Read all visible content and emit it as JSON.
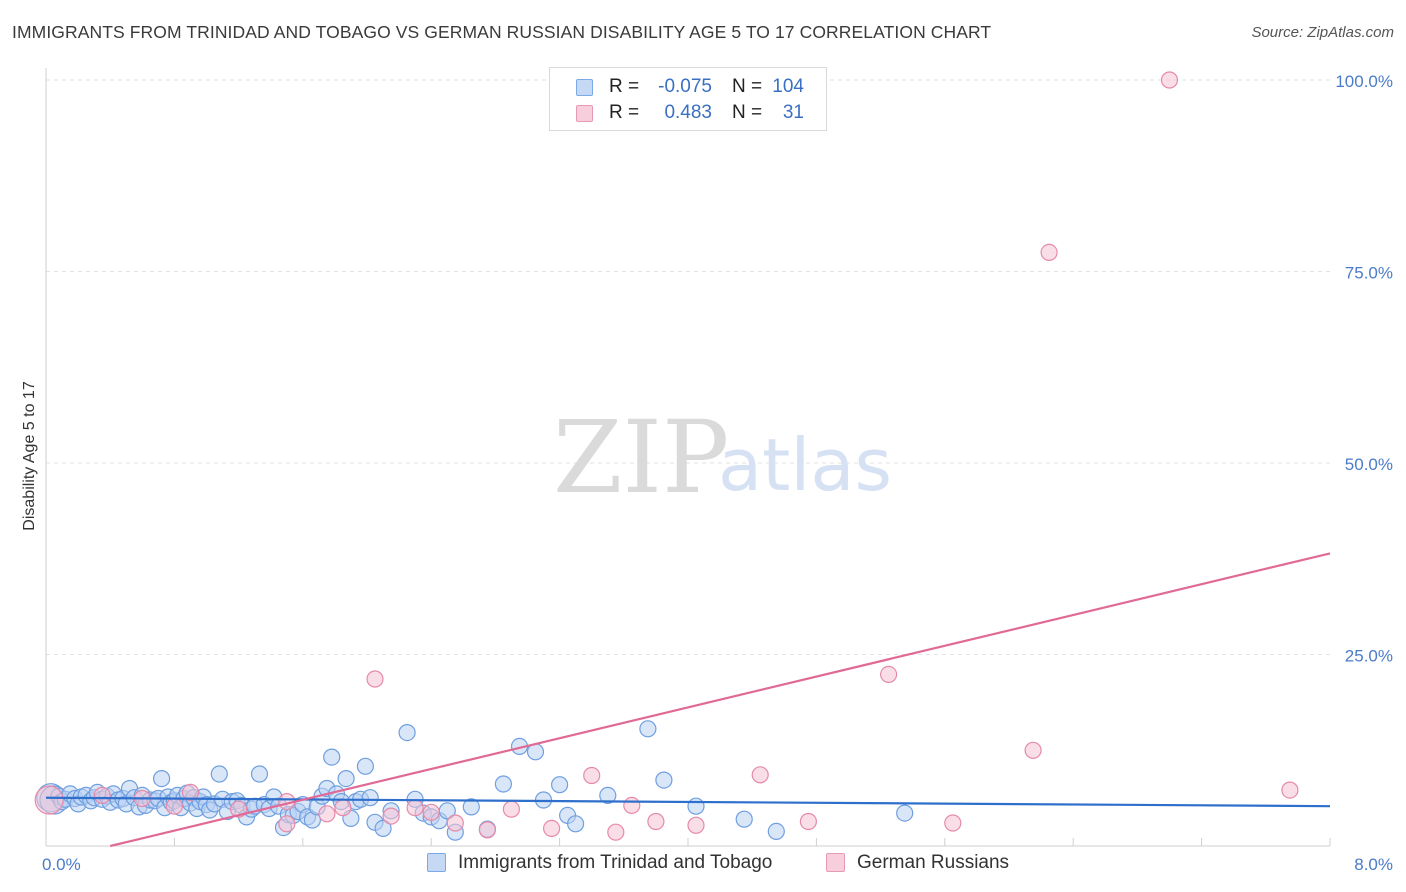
{
  "title": "IMMIGRANTS FROM TRINIDAD AND TOBAGO VS GERMAN RUSSIAN DISABILITY AGE 5 TO 17 CORRELATION CHART",
  "source": "Source: ZipAtlas.com",
  "watermark": {
    "zip": "ZIP",
    "atlas": "atlas"
  },
  "legend": {
    "rows": [
      {
        "r_label": "R =",
        "r_value": "-0.075",
        "n_label": "N =",
        "n_value": "104",
        "color": "#7aa8e8",
        "fill": "#c5d9f5"
      },
      {
        "r_label": "R =",
        "r_value": "0.483",
        "n_label": "N =",
        "n_value": "31",
        "color": "#e89ab4",
        "fill": "#f7cfdc"
      }
    ]
  },
  "bottom_legend": [
    {
      "label": "Immigrants from Trinidad and Tobago",
      "color": "#7aa8e8",
      "fill": "#c5d9f5"
    },
    {
      "label": "German Russians",
      "color": "#e89ab4",
      "fill": "#f7cfdc"
    }
  ],
  "chart_data": {
    "type": "scatter",
    "title": "IMMIGRANTS FROM TRINIDAD AND TOBAGO VS GERMAN RUSSIAN DISABILITY AGE 5 TO 17 CORRELATION CHART",
    "xlabel": "",
    "ylabel": "Disability Age 5 to 17",
    "xlim": [
      0,
      8
    ],
    "ylim": [
      0,
      100
    ],
    "x_tick_labels": [
      "0.0%",
      "8.0%"
    ],
    "y_ticks": [
      25,
      50,
      75,
      100
    ],
    "y_tick_labels": [
      "25.0%",
      "50.0%",
      "75.0%",
      "100.0%"
    ],
    "grid": true,
    "series": [
      {
        "name": "Immigrants from Trinidad and Tobago",
        "color": "#6f9fe0",
        "fill": "#b9d2f3",
        "trend": {
          "x": [
            0,
            8
          ],
          "y": [
            6.3,
            5.2
          ],
          "color": "#2f6fcc"
        },
        "points": [
          [
            0.03,
            6.3
          ],
          [
            0.05,
            6.0
          ],
          [
            0.08,
            6.5
          ],
          [
            0.1,
            5.8
          ],
          [
            0.12,
            6.1
          ],
          [
            0.15,
            6.8
          ],
          [
            0.18,
            6.2
          ],
          [
            0.2,
            5.5
          ],
          [
            0.22,
            6.4
          ],
          [
            0.25,
            6.6
          ],
          [
            0.28,
            5.9
          ],
          [
            0.3,
            6.3
          ],
          [
            0.32,
            7.0
          ],
          [
            0.35,
            6.1
          ],
          [
            0.38,
            6.5
          ],
          [
            0.4,
            5.7
          ],
          [
            0.42,
            6.8
          ],
          [
            0.45,
            6.0
          ],
          [
            0.48,
            6.2
          ],
          [
            0.5,
            5.5
          ],
          [
            0.52,
            7.5
          ],
          [
            0.55,
            6.3
          ],
          [
            0.58,
            5.1
          ],
          [
            0.6,
            6.6
          ],
          [
            0.62,
            5.3
          ],
          [
            0.65,
            6.0
          ],
          [
            0.68,
            5.9
          ],
          [
            0.7,
            6.2
          ],
          [
            0.72,
            8.8
          ],
          [
            0.74,
            5.0
          ],
          [
            0.76,
            6.4
          ],
          [
            0.78,
            5.7
          ],
          [
            0.8,
            5.9
          ],
          [
            0.82,
            6.6
          ],
          [
            0.84,
            5.0
          ],
          [
            0.86,
            6.2
          ],
          [
            0.88,
            6.9
          ],
          [
            0.9,
            5.6
          ],
          [
            0.92,
            6.3
          ],
          [
            0.94,
            4.9
          ],
          [
            0.96,
            5.8
          ],
          [
            0.98,
            6.4
          ],
          [
            1.0,
            5.4
          ],
          [
            1.02,
            4.7
          ],
          [
            1.05,
            5.5
          ],
          [
            1.08,
            9.4
          ],
          [
            1.1,
            6.1
          ],
          [
            1.13,
            4.5
          ],
          [
            1.16,
            5.8
          ],
          [
            1.19,
            5.9
          ],
          [
            1.22,
            5.3
          ],
          [
            1.25,
            3.8
          ],
          [
            1.28,
            4.8
          ],
          [
            1.3,
            5.2
          ],
          [
            1.33,
            9.4
          ],
          [
            1.36,
            5.4
          ],
          [
            1.39,
            4.9
          ],
          [
            1.42,
            6.4
          ],
          [
            1.45,
            5.2
          ],
          [
            1.48,
            2.4
          ],
          [
            1.51,
            4.1
          ],
          [
            1.54,
            4.0
          ],
          [
            1.57,
            4.5
          ],
          [
            1.6,
            5.4
          ],
          [
            1.63,
            3.8
          ],
          [
            1.66,
            3.4
          ],
          [
            1.69,
            5.1
          ],
          [
            1.72,
            6.5
          ],
          [
            1.75,
            7.5
          ],
          [
            1.78,
            11.6
          ],
          [
            1.81,
            6.8
          ],
          [
            1.84,
            5.8
          ],
          [
            1.87,
            8.8
          ],
          [
            1.9,
            3.6
          ],
          [
            1.93,
            5.8
          ],
          [
            1.96,
            6.1
          ],
          [
            1.99,
            10.4
          ],
          [
            2.02,
            6.3
          ],
          [
            2.05,
            3.1
          ],
          [
            2.1,
            2.3
          ],
          [
            2.15,
            4.6
          ],
          [
            2.25,
            14.8
          ],
          [
            2.3,
            6.1
          ],
          [
            2.35,
            4.3
          ],
          [
            2.4,
            3.8
          ],
          [
            2.45,
            3.3
          ],
          [
            2.5,
            4.6
          ],
          [
            2.55,
            1.8
          ],
          [
            2.65,
            5.1
          ],
          [
            2.75,
            2.2
          ],
          [
            2.85,
            8.1
          ],
          [
            2.95,
            13.0
          ],
          [
            3.05,
            12.3
          ],
          [
            3.1,
            6.0
          ],
          [
            3.2,
            8.0
          ],
          [
            3.25,
            4.0
          ],
          [
            3.3,
            2.9
          ],
          [
            3.5,
            6.6
          ],
          [
            3.75,
            15.3
          ],
          [
            3.85,
            8.6
          ],
          [
            4.05,
            5.2
          ],
          [
            4.35,
            3.5
          ],
          [
            4.55,
            1.9
          ],
          [
            5.35,
            4.3
          ]
        ]
      },
      {
        "name": "German Russians",
        "color": "#e58aa9",
        "fill": "#f5c3d4",
        "trend": {
          "x": [
            0.4,
            8
          ],
          "y": [
            0,
            38.2
          ],
          "color": "#e06a95"
        },
        "points": [
          [
            0.02,
            6.0
          ],
          [
            0.35,
            6.6
          ],
          [
            0.6,
            6.2
          ],
          [
            0.9,
            7.0
          ],
          [
            1.2,
            4.8
          ],
          [
            1.5,
            5.8
          ],
          [
            1.75,
            4.2
          ],
          [
            1.85,
            5.0
          ],
          [
            2.05,
            21.8
          ],
          [
            2.15,
            3.9
          ],
          [
            2.3,
            5.0
          ],
          [
            2.4,
            4.4
          ],
          [
            2.55,
            3.0
          ],
          [
            2.75,
            2.1
          ],
          [
            2.9,
            4.8
          ],
          [
            3.15,
            2.3
          ],
          [
            3.4,
            9.2
          ],
          [
            3.55,
            1.8
          ],
          [
            3.65,
            5.3
          ],
          [
            3.8,
            3.2
          ],
          [
            4.05,
            2.7
          ],
          [
            4.45,
            9.3
          ],
          [
            4.75,
            3.2
          ],
          [
            5.25,
            22.4
          ],
          [
            5.65,
            3.0
          ],
          [
            6.15,
            12.5
          ],
          [
            6.25,
            77.5
          ],
          [
            7.0,
            100.0
          ],
          [
            7.75,
            7.3
          ],
          [
            1.5,
            2.9
          ],
          [
            0.8,
            5.2
          ]
        ]
      }
    ]
  }
}
